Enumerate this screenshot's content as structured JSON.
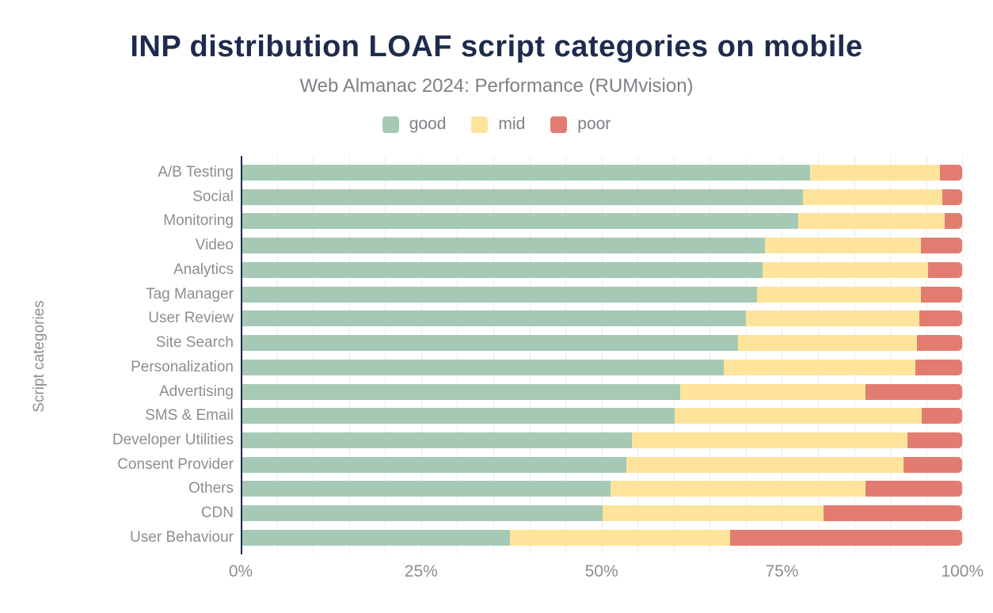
{
  "header": {
    "title": "INP distribution LOAF script categories on mobile",
    "subtitle": "Web Almanac 2024: Performance (RUMvision)"
  },
  "legend": {
    "items": [
      {
        "label": "good",
        "color": "#a6c9b6"
      },
      {
        "label": "mid",
        "color": "#fee49b"
      },
      {
        "label": "poor",
        "color": "#e37c70"
      }
    ]
  },
  "chart_data": {
    "type": "bar",
    "orientation": "horizontal",
    "stacked": true,
    "title": "INP distribution LOAF script categories on mobile",
    "subtitle": "Web Almanac 2024: Performance (RUMvision)",
    "xlabel": "",
    "ylabel": "Script categories",
    "xlim": [
      0,
      100
    ],
    "x_tick_values": [
      0,
      25,
      50,
      75,
      100
    ],
    "x_tick_labels": [
      "0%",
      "25%",
      "50%",
      "75%",
      "100%"
    ],
    "grid": "vertical",
    "gridline_step_percent": 5,
    "legend_position": "top",
    "axis_color": "#1f2b4d",
    "categories": [
      "A/B Testing",
      "Social",
      "Monitoring",
      "Video",
      "Analytics",
      "Tag Manager",
      "User Review",
      "Site Search",
      "Personalization",
      "Advertising",
      "SMS & Email",
      "Developer Utilities",
      "Consent Provider",
      "Others",
      "CDN",
      "User Behaviour"
    ],
    "series": [
      {
        "name": "good",
        "color": "#a6c9b6",
        "values": [
          78.8,
          77.9,
          77.2,
          72.6,
          72.2,
          71.5,
          69.9,
          68.8,
          66.9,
          60.8,
          60.1,
          54.1,
          53.3,
          51.1,
          50.0,
          37.2
        ]
      },
      {
        "name": "mid",
        "color": "#fee49b",
        "values": [
          18.1,
          19.3,
          20.4,
          21.7,
          23.0,
          22.7,
          24.1,
          24.9,
          26.6,
          25.7,
          34.3,
          38.3,
          38.5,
          35.4,
          30.7,
          30.5
        ]
      },
      {
        "name": "poor",
        "color": "#e37c70",
        "values": [
          3.1,
          2.8,
          2.4,
          5.7,
          4.8,
          5.8,
          6.0,
          6.3,
          6.5,
          13.5,
          5.6,
          7.6,
          8.2,
          13.5,
          19.3,
          32.3
        ]
      }
    ]
  }
}
